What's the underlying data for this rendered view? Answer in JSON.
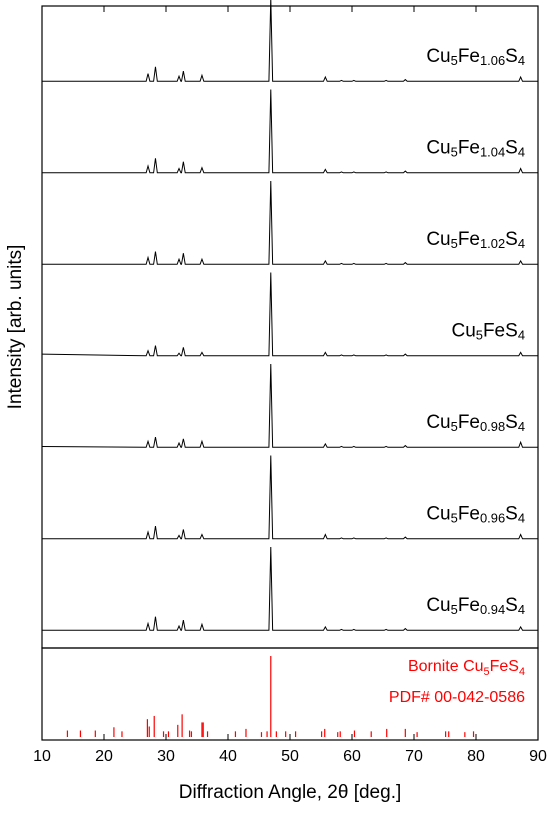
{
  "chart_data": [
    {
      "type": "line",
      "ylabel": "Intensity [arb. units]",
      "xlim": [
        10,
        90
      ],
      "x": [
        10,
        26.8,
        27.1,
        27.4,
        28.0,
        28.3,
        28.6,
        31.8,
        32.1,
        32.4,
        32.5,
        32.8,
        33.1,
        35.5,
        35.8,
        36.1,
        46.6,
        46.9,
        47.2,
        55.4,
        55.7,
        56.0,
        58.0,
        58.3,
        58.6,
        60.0,
        60.3,
        60.6,
        65.2,
        65.5,
        65.8,
        68.3,
        68.6,
        68.9,
        86.9,
        87.2,
        87.5,
        90
      ],
      "series": [
        {
          "name": "Cu5Fe1.06S4",
          "color": "#000000",
          "values": [
            2,
            2,
            11,
            2,
            2,
            19,
            2,
            2,
            8,
            2,
            2,
            14,
            2,
            2,
            9,
            2,
            2,
            100,
            2,
            2,
            7,
            2,
            2,
            3,
            2,
            2,
            3,
            2,
            2,
            3,
            2,
            2,
            4,
            2,
            2,
            7,
            2,
            2
          ]
        },
        {
          "name": "Cu5Fe1.04S4",
          "color": "#000000",
          "values": [
            2,
            2,
            10,
            2,
            2,
            19,
            2,
            2,
            7,
            2,
            2,
            15,
            2,
            2,
            8,
            2,
            2,
            100,
            2,
            2,
            6,
            2,
            2,
            3,
            2,
            2,
            3,
            2,
            2,
            3,
            2,
            2,
            4,
            2,
            2,
            7,
            2,
            2
          ]
        },
        {
          "name": "Cu5Fe1.02S4",
          "color": "#000000",
          "values": [
            2,
            2,
            10,
            2,
            2,
            17,
            2,
            2,
            8,
            2,
            2,
            15,
            2,
            2,
            8,
            2,
            2,
            100,
            2,
            2,
            6,
            2,
            2,
            3,
            2,
            2,
            3,
            2,
            2,
            3,
            2,
            2,
            4,
            2,
            2,
            6,
            2,
            2
          ]
        },
        {
          "name": "Cu5FeS4",
          "color": "#000000",
          "values": [
            4,
            2,
            8,
            2,
            2,
            14,
            2,
            2,
            5,
            2,
            2,
            12,
            2,
            2,
            6,
            2,
            2,
            100,
            2,
            2,
            6,
            2,
            2,
            3,
            2,
            2,
            3,
            2,
            2,
            3,
            2,
            2,
            4,
            2,
            2,
            6,
            2,
            2
          ]
        },
        {
          "name": "Cu5Fe0.98S4",
          "color": "#000000",
          "values": [
            3,
            2,
            9,
            2,
            2,
            14,
            2,
            2,
            7,
            2,
            2,
            12,
            2,
            2,
            9,
            2,
            2,
            100,
            2,
            2,
            6,
            2,
            2,
            3,
            2,
            2,
            3,
            2,
            2,
            3,
            2,
            2,
            4,
            2,
            2,
            8,
            2,
            2
          ]
        },
        {
          "name": "Cu5Fe0.96S4",
          "color": "#000000",
          "values": [
            2,
            2,
            10,
            2,
            2,
            17,
            2,
            2,
            6,
            2,
            2,
            13,
            2,
            2,
            7,
            2,
            2,
            100,
            2,
            2,
            7,
            2,
            2,
            3,
            2,
            2,
            3,
            2,
            2,
            3,
            2,
            2,
            4,
            2,
            2,
            7,
            2,
            2
          ]
        },
        {
          "name": "Cu5Fe0.94S4",
          "color": "#000000",
          "values": [
            2,
            2,
            10,
            2,
            2,
            18,
            2,
            2,
            7,
            2,
            2,
            14,
            2,
            2,
            9,
            2,
            2,
            100,
            2,
            2,
            6,
            2,
            2,
            3,
            2,
            2,
            3,
            2,
            2,
            3,
            2,
            2,
            4,
            2,
            2,
            6,
            2,
            2
          ]
        }
      ]
    },
    {
      "type": "stem",
      "xlabel": "Diffraction Angle, 2θ [deg.]",
      "xlim": [
        10,
        90
      ],
      "xticks": [
        10,
        20,
        30,
        40,
        50,
        60,
        70,
        80,
        90
      ],
      "annotation": "PDF# 00-042-0586",
      "series": [
        {
          "name": "Bornite Cu5FeS4",
          "color": "#ff0000",
          "x": [
            14.1,
            16.2,
            18.6,
            21.6,
            22.9,
            27.0,
            27.3,
            28.1,
            29.6,
            30.4,
            31.9,
            32.6,
            33.8,
            34.1,
            35.8,
            36.0,
            36.7,
            41.2,
            42.9,
            45.4,
            46.3,
            46.9,
            47.8,
            49.3,
            50.9,
            55.1,
            55.6,
            57.7,
            58.1,
            60.4,
            63.1,
            65.6,
            68.6,
            70.5,
            75.1,
            75.6,
            78.2,
            79.6
          ],
          "values": [
            8,
            8,
            8,
            12,
            7,
            22,
            13,
            26,
            7,
            7,
            15,
            28,
            8,
            7,
            18,
            18,
            7,
            7,
            10,
            6,
            7,
            100,
            7,
            7,
            7,
            7,
            10,
            6,
            7,
            8,
            7,
            10,
            10,
            6,
            7,
            7,
            6,
            7
          ]
        }
      ]
    }
  ]
}
